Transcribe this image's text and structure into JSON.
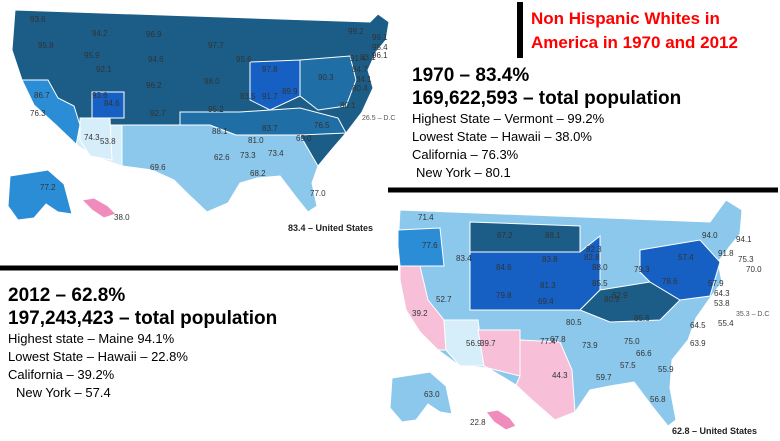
{
  "title": "Non Hispanic Whites in America in 1970 and 2012",
  "colors": {
    "darkest": "#1b5d87",
    "dark": "#1f6ea6",
    "royal": "#1660c4",
    "mid": "#2b8dd6",
    "light": "#8cc8ec",
    "pale": "#d6eefa",
    "pink_light": "#f7c0d8",
    "pink": "#f08cbc",
    "divider": "#000000"
  },
  "map_1970": {
    "caption": "83.4 – United States",
    "dc_label": "26.5 – D.C",
    "state_labels": [
      "93.6",
      "94.2",
      "96.9",
      "97.7",
      "95.8",
      "95.9",
      "92.1",
      "94.6",
      "95.6",
      "86.7",
      "93.6",
      "96.2",
      "98.0",
      "97.8",
      "89.9",
      "91.7",
      "84.6",
      "83.5",
      "90.3",
      "76.3",
      "92.7",
      "95.2",
      "74.3",
      "88.1",
      "81.0",
      "83.7",
      "76.5",
      "80.1",
      "53.8",
      "73.3",
      "73.4",
      "69.0",
      "62.6",
      "68.2",
      "69.6",
      "77.0",
      "77.2",
      "38.0",
      "99.2",
      "99.1",
      "95.4",
      "96.1",
      "91.4",
      "84.7",
      "84.1",
      "80.4",
      "83.1"
    ]
  },
  "map_2012": {
    "caption": "62.8 – United States",
    "dc_label": "35.3 – D.C",
    "state_labels": [
      "71.4",
      "87.2",
      "88.1",
      "77.6",
      "83.4",
      "94.0",
      "94.1",
      "82.3",
      "91.8",
      "84.6",
      "83.8",
      "75.3",
      "85.5",
      "57.4",
      "70.0",
      "82.8",
      "79.3",
      "79.8",
      "69.4",
      "81.3",
      "88.0",
      "62.9",
      "80.9",
      "78.6",
      "57.9",
      "64.3",
      "53.8",
      "39.2",
      "52.7",
      "77.4",
      "80.5",
      "85.6",
      "63.9",
      "55.4",
      "56.9",
      "39.7",
      "67.8",
      "73.9",
      "75.0",
      "64.5",
      "66.6",
      "55.9",
      "44.3",
      "59.7",
      "57.5",
      "56.8",
      "63.0",
      "22.8"
    ]
  },
  "panel_1970": {
    "headline": "1970 – 83.4%",
    "population": "169,622,593 – total population",
    "highest": "Highest State – Vermont – 99.2%",
    "lowest": "Lowest State – Hawaii – 38.0%",
    "california": "California – 76.3%",
    "new_york": "New York – 80.1"
  },
  "panel_2012": {
    "headline": "2012 – 62.8%",
    "population": "197,243,423 – total population",
    "highest": "Highest state – Maine 94.1%",
    "lowest": "Lowest State – Hawaii – 22.8%",
    "california": "California – 39.2%",
    "new_york": "New York – 57.4"
  }
}
